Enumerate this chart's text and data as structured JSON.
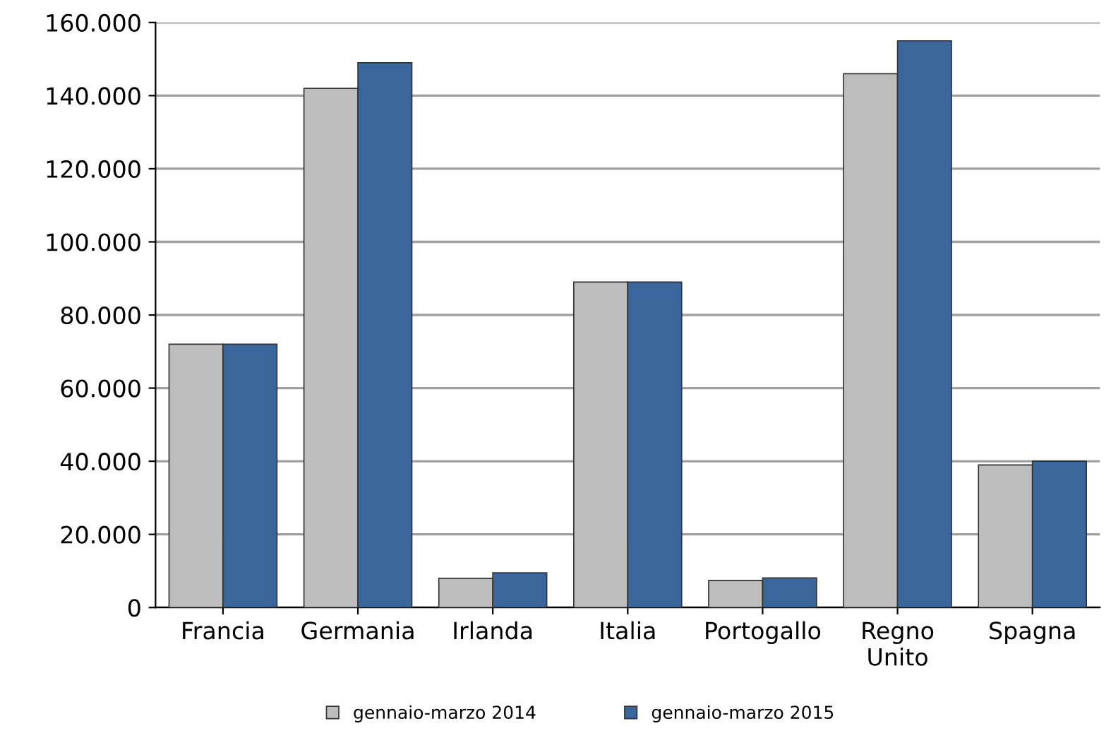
{
  "chart_data": {
    "type": "bar",
    "categories": [
      "Francia",
      "Germania",
      "Irlanda",
      "Italia",
      "Portogallo",
      "Regno\nUnito",
      "Spagna"
    ],
    "series": [
      {
        "name": "gennaio-marzo 2014",
        "color": "#bdbdbd",
        "values": [
          72000,
          142000,
          8000,
          89000,
          7400,
          146000,
          39000
        ]
      },
      {
        "name": "gennaio-marzo 2015",
        "color": "#3b669c",
        "values": [
          72000,
          149000,
          9500,
          89000,
          8100,
          155000,
          40000
        ]
      }
    ],
    "ylim": [
      0,
      160000
    ],
    "yticks": [
      {
        "value": 0,
        "label": "0"
      },
      {
        "value": 20000,
        "label": "20.000"
      },
      {
        "value": 40000,
        "label": "40.000"
      },
      {
        "value": 60000,
        "label": "60.000"
      },
      {
        "value": 80000,
        "label": "80.000"
      },
      {
        "value": 100000,
        "label": "100.000"
      },
      {
        "value": 120000,
        "label": "120.000"
      },
      {
        "value": 140000,
        "label": "140.000"
      },
      {
        "value": 160000,
        "label": "160.000"
      }
    ],
    "grid": "y",
    "legend": "bottom"
  }
}
